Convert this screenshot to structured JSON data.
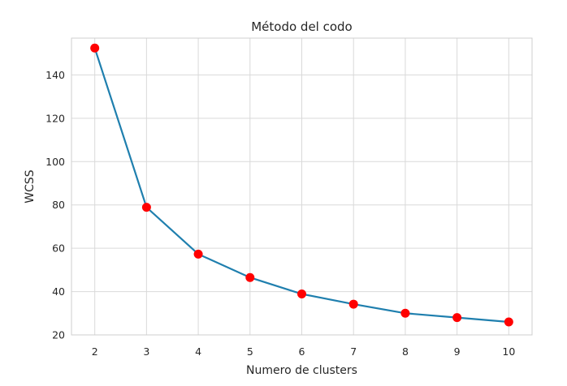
{
  "chart_data": {
    "type": "line",
    "title": "Método del codo",
    "xlabel": "Numero de clusters",
    "ylabel": "WCSS",
    "x": [
      2,
      3,
      4,
      5,
      6,
      7,
      8,
      9,
      10
    ],
    "series": [
      {
        "values": [
          152.4,
          78.9,
          57.3,
          46.5,
          38.9,
          34.2,
          30.0,
          28.0,
          26.0
        ]
      }
    ],
    "xlim": [
      1.55,
      10.45
    ],
    "ylim": [
      20,
      157
    ],
    "xticks": [
      "2",
      "3",
      "4",
      "5",
      "6",
      "7",
      "8",
      "9",
      "10"
    ],
    "yticks": [
      "20",
      "40",
      "60",
      "80",
      "100",
      "120",
      "140"
    ],
    "grid": true,
    "legend": "none",
    "colors": {
      "line": "#1f7fae",
      "marker": "#ff0000",
      "grid": "#d9d9d9",
      "axes_edge": "#cfcfcf",
      "text": "#262626"
    }
  }
}
